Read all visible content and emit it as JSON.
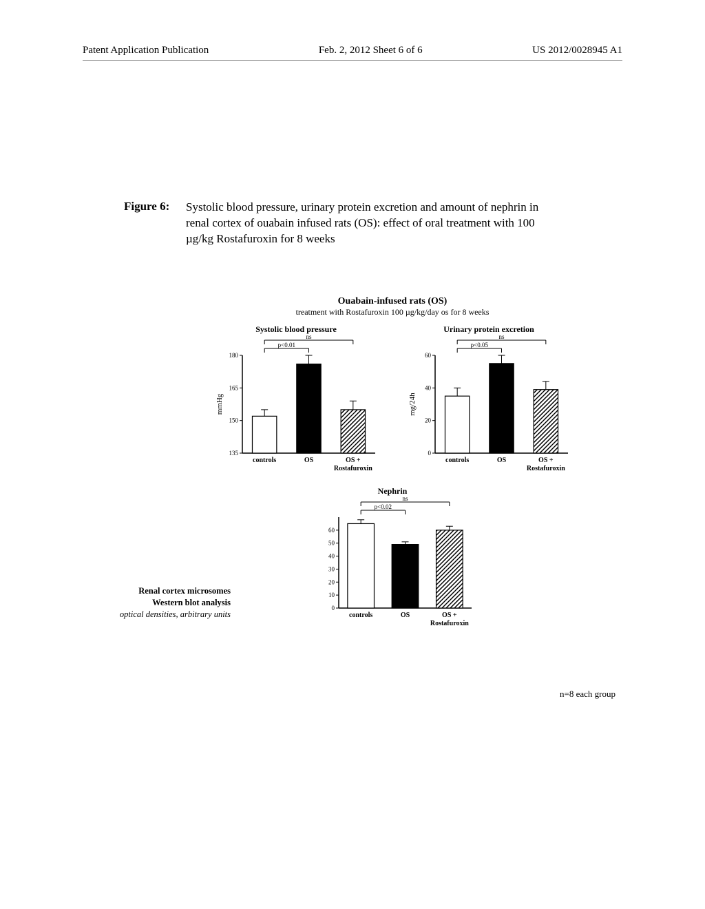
{
  "header": {
    "left": "Patent Application Publication",
    "center": "Feb. 2, 2012  Sheet 6 of 6",
    "right": "US 2012/0028945 A1"
  },
  "figure": {
    "label": "Figure 6:",
    "caption": "Systolic blood pressure, urinary protein excretion and amount of nephrin in renal cortex of ouabain infused rats (OS): effect of oral treatment with 100 µg/kg Rostafuroxin for 8 weeks"
  },
  "chartset": {
    "main_title": "Ouabain-infused rats (OS)",
    "sub_title": "treatment with Rostafuroxin 100 µg/kg/day os for 8 weeks",
    "footer_note": "n=8 each group",
    "categories": [
      "controls",
      "OS",
      "OS + Rostafuroxin"
    ],
    "fill_patterns": [
      "open",
      "solid",
      "hatched"
    ],
    "font_category": 10,
    "font_axis": 10,
    "colors": {
      "bar_stroke": "#000000",
      "bar_solid": "#000000",
      "background": "#ffffff",
      "axis": "#000000"
    },
    "charts": {
      "sbp": {
        "title": "Systolic blood pressure",
        "ylabel": "mmHg",
        "ylim": [
          135,
          180
        ],
        "yticks": [
          135,
          150,
          165,
          180
        ],
        "values": [
          152,
          176,
          155
        ],
        "errors": [
          3,
          4,
          4
        ],
        "sig_inner": "p<0.01",
        "sig_outer": "ns",
        "bar_width": 0.55
      },
      "upr": {
        "title": "Urinary protein excretion",
        "ylabel": "mg/24h",
        "ylim": [
          0,
          60
        ],
        "yticks": [
          0,
          20,
          40,
          60
        ],
        "values": [
          35,
          55,
          39
        ],
        "errors": [
          5,
          5,
          5
        ],
        "sig_inner": "p<0.05",
        "sig_outer": "ns",
        "bar_width": 0.55
      },
      "nephrin": {
        "title": "Nephrin",
        "ylabel": "",
        "ylim": [
          0,
          70
        ],
        "yticks": [
          0,
          10,
          20,
          30,
          40,
          50,
          60
        ],
        "values": [
          65,
          49,
          60
        ],
        "errors": [
          3,
          2,
          3
        ],
        "sig_inner": "p<0.02",
        "sig_outer": "ns",
        "bar_width": 0.6
      }
    },
    "side_label": {
      "line1": "Renal cortex microsomes",
      "line2": "Western blot analysis",
      "line3": "optical densities, arbitrary units"
    }
  }
}
